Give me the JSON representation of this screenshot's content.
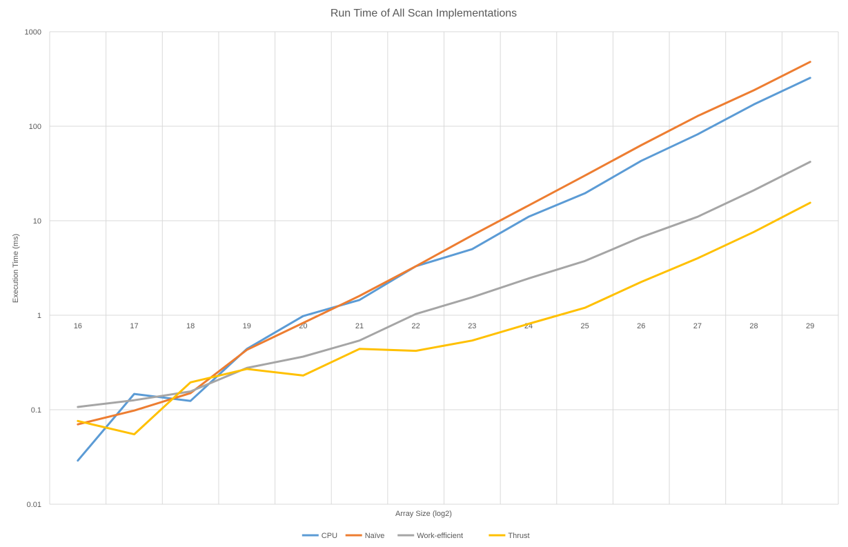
{
  "chart_data": {
    "type": "line",
    "title": "Run Time of All Scan Implementations",
    "xlabel": "Array Size (log2)",
    "ylabel": "Execution Time (ms)",
    "yscale": "log",
    "ylim": [
      0.01,
      1000
    ],
    "yticks": [
      "0.01",
      "0.1",
      "1",
      "10",
      "100",
      "1000"
    ],
    "categories": [
      "16",
      "17",
      "18",
      "19",
      "20",
      "21",
      "22",
      "23",
      "24",
      "25",
      "26",
      "27",
      "28",
      "29"
    ],
    "grid": true,
    "legend": "bottom",
    "series": [
      {
        "name": "CPU",
        "color": "#5b9bd5",
        "values": [
          0.029,
          0.147,
          0.124,
          0.44,
          0.98,
          1.45,
          3.3,
          5.0,
          11.0,
          19.5,
          43,
          82,
          170,
          325
        ]
      },
      {
        "name": "Naïve",
        "color": "#ed7d31",
        "values": [
          0.07,
          0.098,
          0.15,
          0.43,
          0.83,
          1.6,
          3.3,
          7.0,
          14.5,
          30,
          63,
          128,
          240,
          480
        ]
      },
      {
        "name": "Work-efficient",
        "color": "#a5a5a5",
        "values": [
          0.107,
          0.126,
          0.156,
          0.277,
          0.365,
          0.54,
          1.03,
          1.55,
          2.45,
          3.75,
          6.7,
          11,
          21,
          42
        ]
      },
      {
        "name": "Thrust",
        "color": "#ffc000",
        "values": [
          0.076,
          0.055,
          0.195,
          0.27,
          0.23,
          0.44,
          0.42,
          0.54,
          0.81,
          1.2,
          2.25,
          4.0,
          7.6,
          15.5
        ]
      }
    ]
  }
}
